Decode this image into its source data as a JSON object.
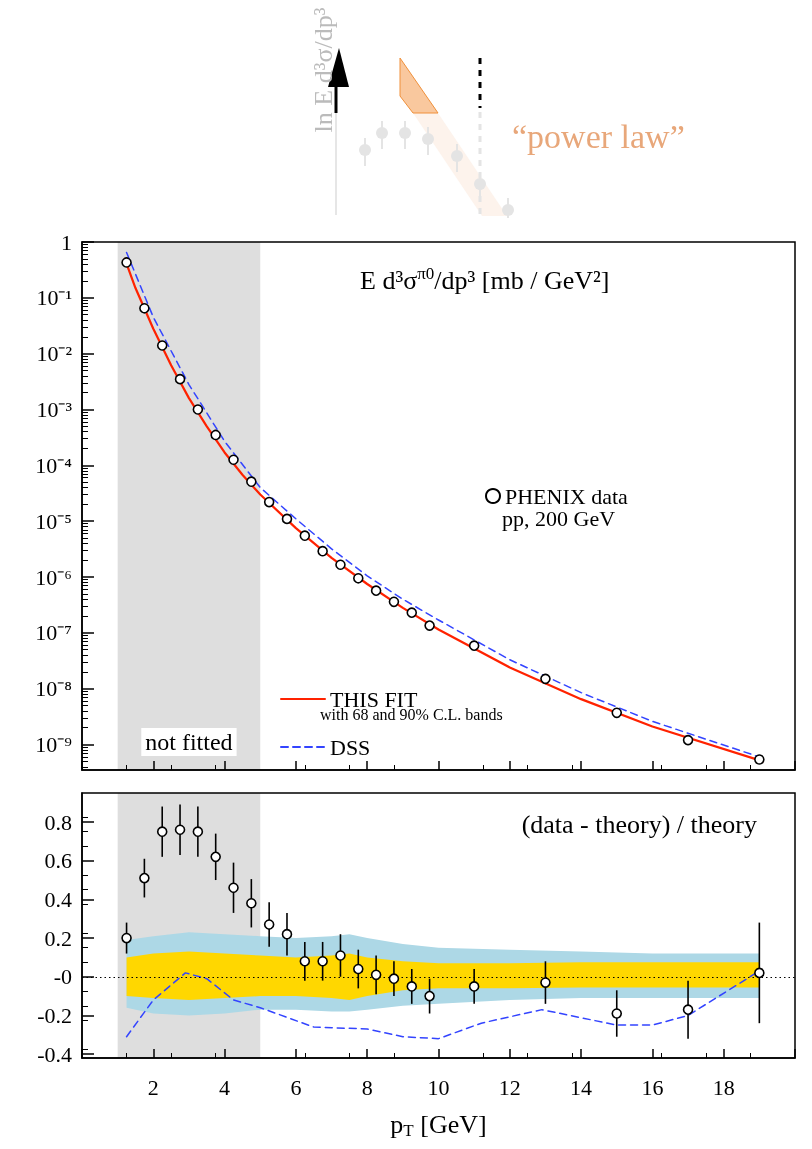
{
  "chart_data": [
    {
      "type": "other",
      "annotations": [
        "ln E d³σ/dp³",
        "“power law”"
      ]
    },
    {
      "type": "scatter",
      "log": "y",
      "tick_labels": "y",
      "legend": "bottom left",
      "xlim": [
        0,
        20
      ],
      "xticks": [
        0,
        2,
        4,
        6,
        8,
        10,
        12,
        14,
        16,
        18,
        20
      ],
      "ylim": [
        3.5e-10,
        1
      ],
      "yticks": [
        1,
        {
          "value": 0.1,
          "label": "10⁻¹"
        },
        {
          "value": 0.01,
          "label": "10⁻²"
        },
        {
          "value": 0.001,
          "label": "10⁻³"
        },
        {
          "value": 0.0001,
          "label": "10⁻⁴"
        },
        {
          "value": 1e-05,
          "label": "10⁻⁵"
        },
        {
          "value": 1e-06,
          "label": "10⁻⁶"
        },
        {
          "value": 1e-07,
          "label": "10⁻⁷"
        },
        {
          "value": 1e-08,
          "label": "10⁻⁸"
        },
        {
          "value": 1e-09,
          "label": "10⁻⁹"
        }
      ],
      "bands": [
        {
          "axis": "x",
          "from": 1,
          "to": 5,
          "label": "not fitted",
          "color": "#000000"
        }
      ],
      "annotations": [
        "E d³σ$^{π0}$/dp³ [mb / GeV²]",
        "pp, 200 GeV",
        "with 68 and 90% C.L. bands"
      ],
      "series": [
        {
          "name": "THIS FIT",
          "type": "line",
          "color": "#ff2200",
          "x": [
            1.2,
            1.5,
            2,
            2.5,
            3,
            3.5,
            4,
            4.5,
            5,
            6,
            7,
            8,
            9,
            10,
            12,
            14,
            16,
            19.1
          ],
          "values": [
            0.5,
            0.15,
            0.028,
            0.0062,
            0.0016,
            0.0005,
            0.00017,
            6.8e-05,
            3e-05,
            7.5e-06,
            2.2e-06,
            7.5e-07,
            2.8e-07,
            1.15e-07,
            2.4e-08,
            6.5e-09,
            2.1e-09,
            5e-10
          ]
        },
        {
          "name": "DSS",
          "type": "line",
          "line_style": "dashed",
          "color": "#3344ff",
          "x": [
            1.25,
            2,
            3,
            4,
            5,
            6,
            7,
            8,
            9,
            10,
            12,
            14,
            16,
            19
          ],
          "values": [
            0.65,
            0.045,
            0.0028,
            0.00027,
            4e-05,
            1.1e-05,
            3.2e-06,
            1.05e-06,
            4e-07,
            1.7e-07,
            3.3e-08,
            8.5e-09,
            2.6e-09,
            6e-10
          ]
        },
        {
          "name": "PHENIX data",
          "type": "scatter",
          "marker": "circle",
          "color": "#000000",
          "x": [
            1.25,
            1.75,
            2.25,
            2.75,
            3.25,
            3.75,
            4.25,
            4.75,
            5.25,
            5.75,
            6.25,
            6.75,
            7.25,
            7.75,
            8.25,
            8.75,
            9.25,
            9.75,
            11,
            13,
            15,
            17,
            19
          ],
          "values": [
            0.43,
            0.065,
            0.014,
            0.0035,
            0.001,
            0.00035,
            0.000126,
            5.1e-05,
            2.2e-05,
            1.1e-05,
            5.5e-06,
            2.9e-06,
            1.66e-06,
            9.5e-07,
            5.7e-07,
            3.6e-07,
            2.3e-07,
            1.35e-07,
            5.9e-08,
            1.5e-08,
            3.7e-09,
            1.2e-09,
            5.4e-10
          ]
        }
      ]
    },
    {
      "type": "scatter",
      "xlabel": "p$_{T}$ [GeV]",
      "xlim": [
        0,
        20
      ],
      "xticks": [
        {
          "value": 0,
          "label": null
        },
        2,
        4,
        6,
        8,
        10,
        12,
        14,
        16,
        18,
        {
          "value": 20,
          "label": null
        }
      ],
      "ylim": [
        -0.42,
        0.95
      ],
      "yticks": [
        -0.4,
        -0.2,
        {
          "value": 0,
          "label": "-0"
        },
        0.2,
        0.4,
        0.6,
        0.8
      ],
      "ref_lines": [
        {
          "axis": "y",
          "value": 0,
          "color": "#000000",
          "line_style": "dotted"
        }
      ],
      "bands": [
        {
          "axis": "x",
          "from": 1,
          "to": 5,
          "color": "#000000"
        }
      ],
      "annotations": [
        "(data - theory) / theory"
      ],
      "series": [
        {
          "type": "area",
          "color": "#add8e6",
          "x": [
            1.25,
            2,
            3,
            4,
            5,
            6,
            7,
            7.5,
            8,
            9,
            10,
            12,
            14,
            16,
            18,
            19
          ],
          "values": [
            null,
            null,
            null,
            null,
            null,
            null,
            null,
            null,
            null,
            null,
            null,
            null,
            null,
            null,
            null,
            null
          ],
          "lower": [
            -0.16,
            -0.19,
            -0.2,
            -0.19,
            -0.17,
            -0.17,
            -0.18,
            -0.18,
            -0.17,
            -0.15,
            -0.14,
            -0.12,
            -0.11,
            -0.11,
            -0.11,
            -0.11
          ],
          "upper": [
            0.19,
            0.21,
            0.23,
            0.22,
            0.21,
            0.2,
            0.21,
            0.22,
            0.2,
            0.17,
            0.15,
            0.14,
            0.13,
            0.12,
            0.12,
            0.12
          ]
        },
        {
          "type": "area",
          "color": "#ffd700",
          "x": [
            1.25,
            2,
            3,
            4,
            5,
            6,
            7,
            7.5,
            8,
            9,
            10,
            12,
            14,
            16,
            18,
            19
          ],
          "values": [
            null,
            null,
            null,
            null,
            null,
            null,
            null,
            null,
            null,
            null,
            null,
            null,
            null,
            null,
            null,
            null
          ],
          "lower": [
            -0.1,
            -0.11,
            -0.12,
            -0.11,
            -0.1,
            -0.1,
            -0.11,
            -0.12,
            -0.1,
            -0.07,
            -0.06,
            -0.06,
            -0.055,
            -0.055,
            -0.055,
            -0.055
          ],
          "upper": [
            0.1,
            0.12,
            0.13,
            0.12,
            0.11,
            0.1,
            0.11,
            0.12,
            0.1,
            0.08,
            0.07,
            0.07,
            0.075,
            0.075,
            0.075,
            0.075
          ]
        },
        {
          "type": "line",
          "line_style": "dashed",
          "color": "#3344ff",
          "x": [
            1.25,
            2,
            2.9,
            3.5,
            4.25,
            5,
            6.5,
            8,
            9,
            10,
            11.2,
            12.9,
            15,
            16,
            17,
            19
          ],
          "values": [
            -0.31,
            -0.12,
            0.02,
            -0.01,
            -0.12,
            -0.16,
            -0.26,
            -0.27,
            -0.31,
            -0.32,
            -0.24,
            -0.17,
            -0.25,
            -0.25,
            -0.2,
            0.03
          ]
        },
        {
          "type": "scatter",
          "marker": "circle",
          "color": "#000000",
          "x": [
            1.25,
            1.75,
            2.25,
            2.75,
            3.25,
            3.75,
            4.25,
            4.75,
            5.25,
            5.75,
            6.25,
            6.75,
            7.25,
            7.75,
            8.25,
            8.75,
            9.25,
            9.75,
            11,
            13,
            15,
            17,
            19
          ],
          "values": [
            0.2,
            0.51,
            0.75,
            0.76,
            0.75,
            0.62,
            0.46,
            0.38,
            0.27,
            0.22,
            0.08,
            0.08,
            0.11,
            0.04,
            0.01,
            -0.01,
            -0.05,
            -0.1,
            -0.05,
            -0.03,
            -0.19,
            -0.17,
            0.02
          ],
          "errors": [
            0.08,
            0.1,
            0.13,
            0.13,
            0.13,
            0.12,
            0.13,
            0.125,
            0.115,
            0.11,
            0.1,
            0.1,
            0.11,
            0.1,
            0.1,
            0.09,
            0.09,
            0.09,
            0.09,
            0.11,
            0.12,
            0.15,
            0.26
          ]
        }
      ]
    }
  ]
}
